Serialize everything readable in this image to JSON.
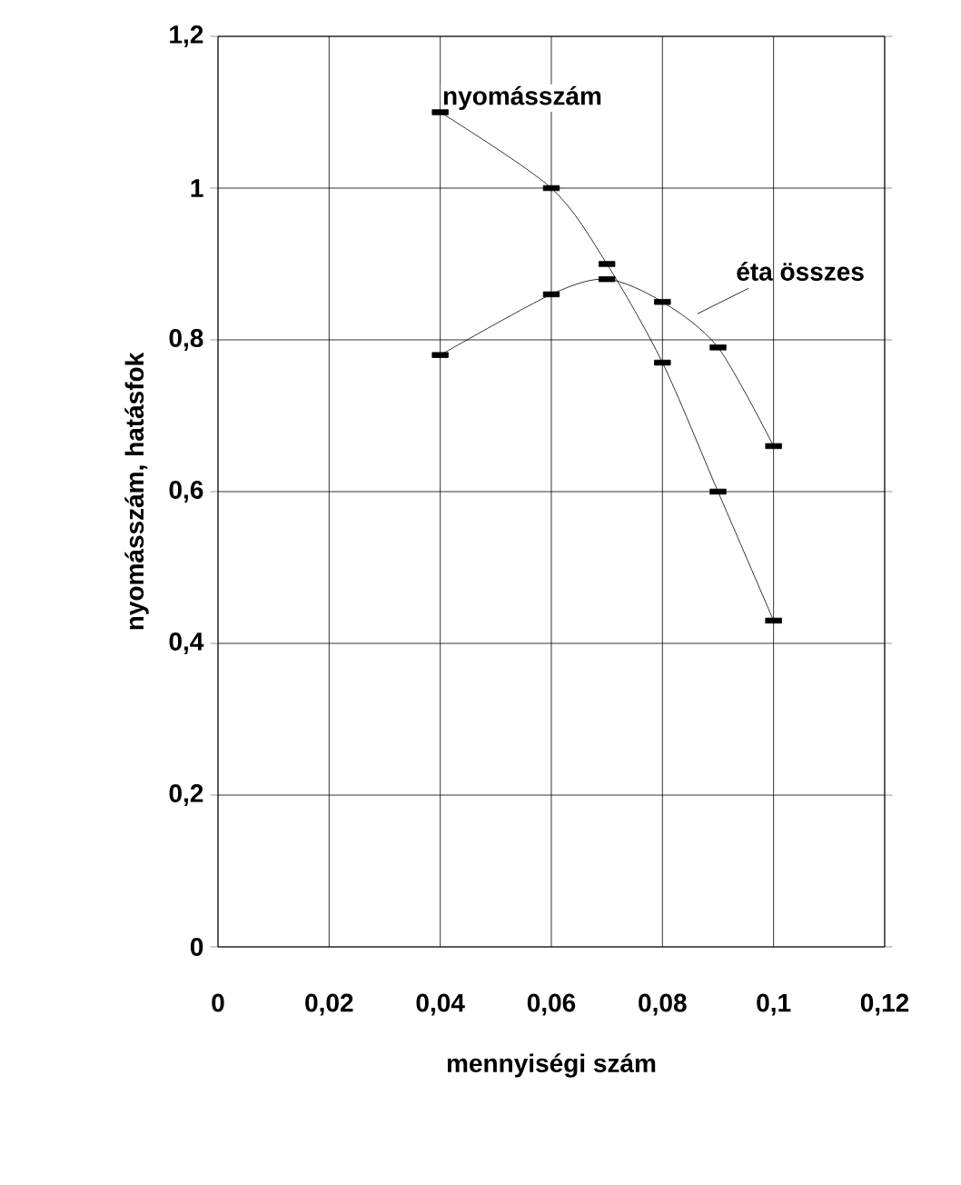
{
  "chart_data": {
    "type": "line",
    "xlabel": "mennyiségi szám",
    "ylabel": "nyomásszám, hatásfok",
    "xlim": [
      0,
      0.12
    ],
    "ylim": [
      0,
      1.2
    ],
    "xticks": [
      0,
      {
        "value": 0.02,
        "label": "0,02"
      },
      {
        "value": 0.04,
        "label": "0,04"
      },
      {
        "value": 0.06,
        "label": "0,06"
      },
      {
        "value": 0.08,
        "label": "0,08"
      },
      {
        "value": 0.1,
        "label": "0,1"
      },
      {
        "value": 0.12,
        "label": "0,12"
      }
    ],
    "yticks": [
      0,
      {
        "value": 0.2,
        "label": "0,2"
      },
      {
        "value": 0.4,
        "label": "0,4"
      },
      {
        "value": 0.6,
        "label": "0,6"
      },
      {
        "value": 0.8,
        "label": "0,8"
      },
      1,
      {
        "value": 1.2,
        "label": "1,2"
      }
    ],
    "grid": true,
    "legend": false,
    "marker": "square",
    "line_style": "solid",
    "x": [
      0.04,
      0.06,
      0.07,
      0.08,
      0.09,
      0.1
    ],
    "series": [
      {
        "name": "nyomásszám",
        "color": "#000000",
        "values": [
          1.1,
          1.0,
          0.9,
          0.77,
          0.6,
          0.43
        ]
      },
      {
        "name": "éta összes",
        "color": "#000000",
        "values": [
          0.78,
          0.86,
          0.88,
          0.85,
          0.79,
          0.66
        ]
      }
    ]
  }
}
